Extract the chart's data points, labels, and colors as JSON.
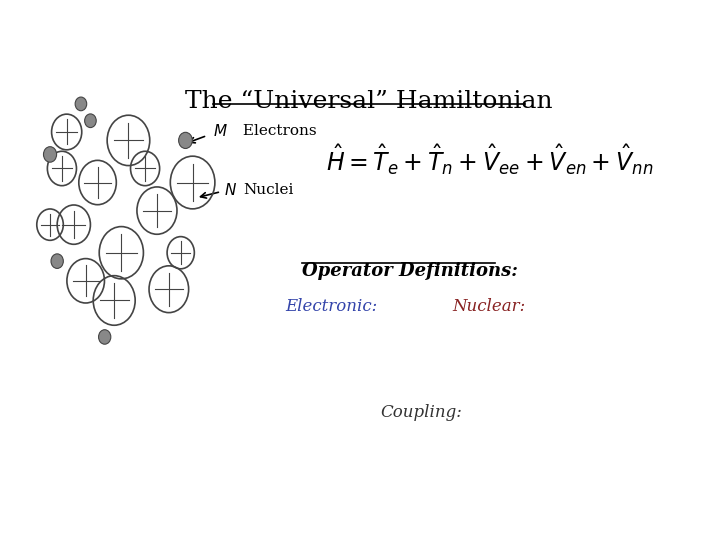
{
  "title": "The “Universal” Hamiltonian",
  "title_fontsize": 18,
  "background_color": "#ffffff",
  "box_color": "#2233aa",
  "operator_def_label": "Operator Definitions:",
  "electronic_label": "Electronic:",
  "nuclear_label": "Nuclear:",
  "coupling_label": "Coupling:",
  "electronic_color": "#3344aa",
  "nuclear_color": "#882222",
  "coupling_color": "#333333",
  "image_bg": "#e8e8ee"
}
